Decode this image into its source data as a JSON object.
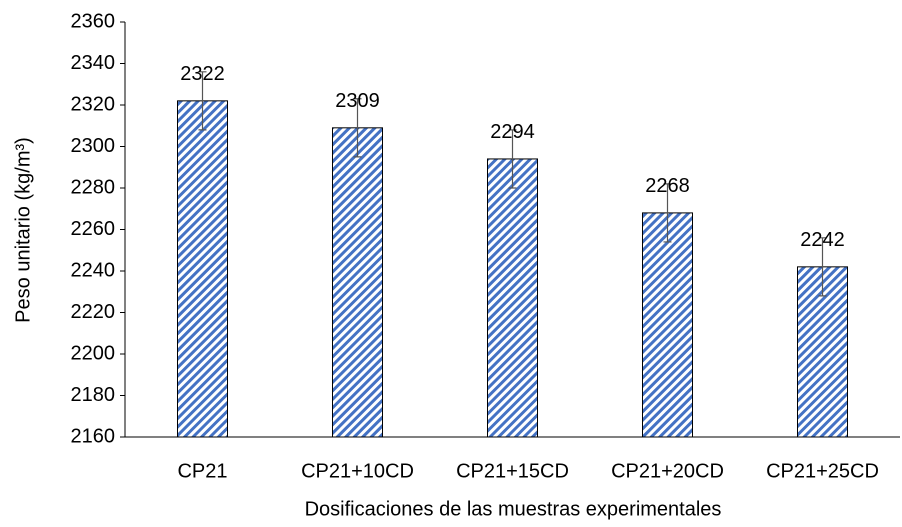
{
  "chart_data": {
    "type": "bar",
    "categories": [
      "CP21",
      "CP21+10CD",
      "CP21+15CD",
      "CP21+20CD",
      "CP21+25CD"
    ],
    "values": [
      2322,
      2309,
      2294,
      2268,
      2242
    ],
    "errors": [
      14,
      14,
      14,
      14,
      14
    ],
    "color": "#4472c4",
    "xlabel": "Dosificaciones de las muestras experimentales",
    "ylabel": "Peso unitario (kg/m³)",
    "ylim": [
      2160,
      2360
    ],
    "yticks": [
      2160,
      2180,
      2200,
      2220,
      2240,
      2260,
      2280,
      2300,
      2320,
      2340,
      2360
    ],
    "grid": false
  }
}
